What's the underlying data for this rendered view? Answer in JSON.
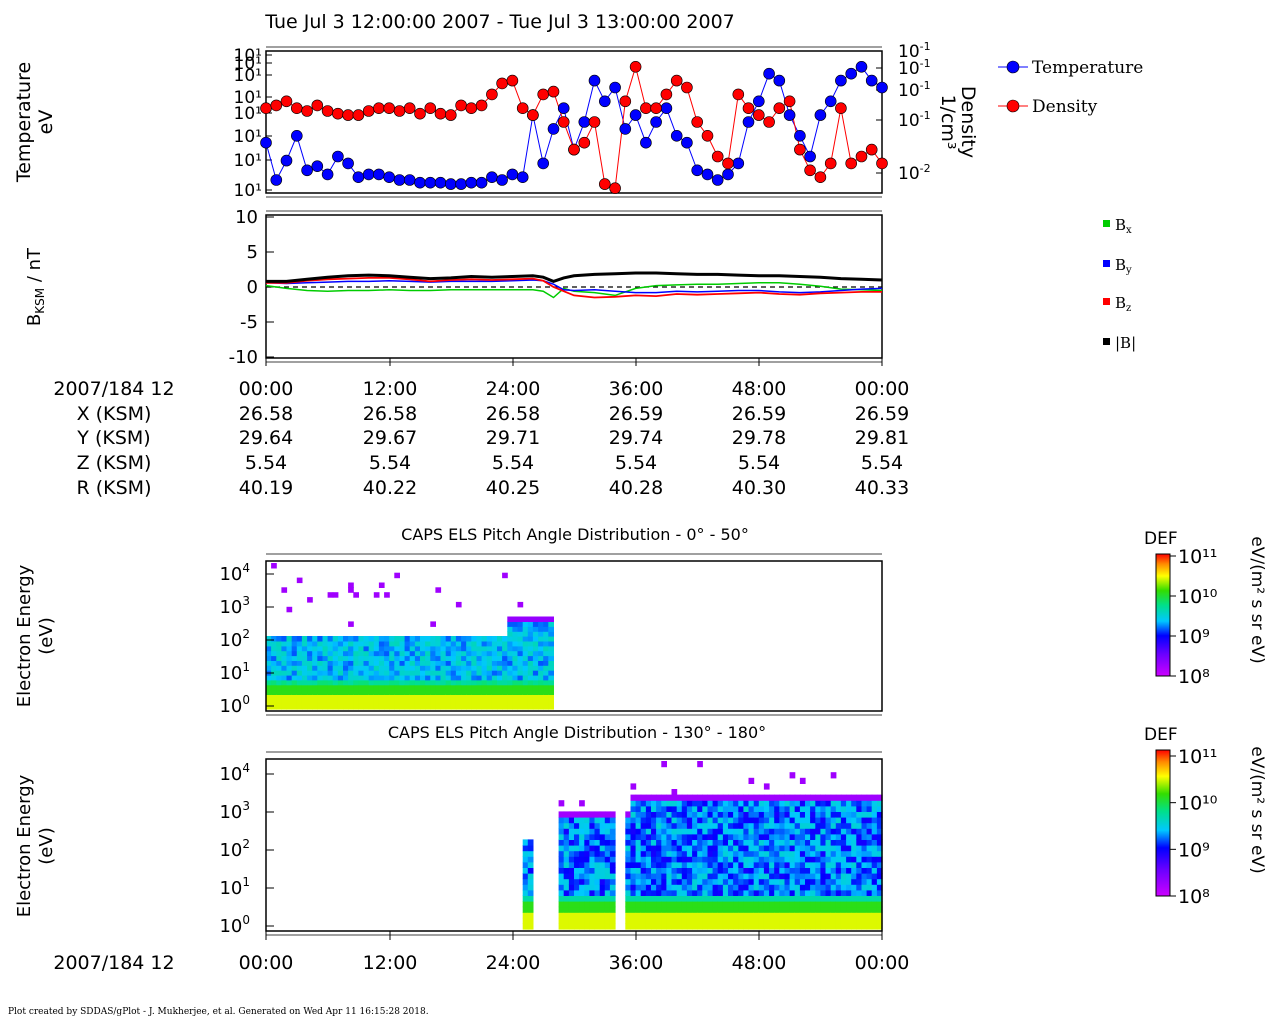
{
  "title": "Tue Jul 3 12:00:00 2007 - Tue Jul 3 13:00:00 2007",
  "footer": "Plot created by SDDAS/gPlot - J. Mukherjee, et al.  Generated on Wed Apr 11 16:15:28 2018.",
  "colors": {
    "temperature": "#0000ff",
    "density": "#ff0000",
    "bx": "#00cc00",
    "by": "#0000ff",
    "bz": "#ff0000",
    "bmag": "#000000"
  },
  "chart_data": [
    {
      "type": "scatter",
      "ylabel_left": "Temperature",
      "ylabel_left_unit": "eV",
      "ylabel_right": "Density",
      "ylabel_right_unit": "1/cm³",
      "left_ticks": [
        "10¹",
        "10¹",
        "10¹",
        "10¹",
        "10¹",
        "10¹",
        "10¹",
        "10¹"
      ],
      "right_ticks": [
        "10-1",
        "10-1",
        "10-1",
        "10-1",
        "10-2"
      ],
      "legend": [
        {
          "name": "Temperature"
        },
        {
          "name": "Density"
        }
      ],
      "x_minutes": [
        0,
        1,
        2,
        3,
        4,
        5,
        6,
        7,
        8,
        9,
        10,
        11,
        12,
        13,
        14,
        15,
        16,
        17,
        18,
        19,
        20,
        21,
        22,
        23,
        24,
        25,
        26,
        27,
        28,
        29,
        30,
        31,
        32,
        33,
        34,
        35,
        36,
        37,
        38,
        39,
        40,
        41,
        42,
        43,
        44,
        45,
        46,
        47,
        48,
        49,
        50,
        51,
        52,
        53,
        54,
        55,
        56,
        57,
        58,
        59,
        60
      ],
      "temperature_norm": [
        0.35,
        0.08,
        0.22,
        0.4,
        0.15,
        0.18,
        0.12,
        0.25,
        0.2,
        0.1,
        0.12,
        0.12,
        0.1,
        0.08,
        0.08,
        0.06,
        0.06,
        0.06,
        0.05,
        0.05,
        0.06,
        0.06,
        0.1,
        0.08,
        0.12,
        0.1,
        0.55,
        0.2,
        0.45,
        0.6,
        0.3,
        0.5,
        0.8,
        0.65,
        0.75,
        0.45,
        0.55,
        0.35,
        0.5,
        0.6,
        0.4,
        0.35,
        0.15,
        0.12,
        0.08,
        0.12,
        0.2,
        0.5,
        0.65,
        0.85,
        0.8,
        0.55,
        0.4,
        0.25,
        0.55,
        0.65,
        0.8,
        0.85,
        0.9,
        0.8,
        0.75
      ],
      "density_norm": [
        0.6,
        0.62,
        0.65,
        0.6,
        0.58,
        0.62,
        0.58,
        0.56,
        0.55,
        0.55,
        0.58,
        0.6,
        0.6,
        0.58,
        0.6,
        0.56,
        0.6,
        0.56,
        0.55,
        0.62,
        0.6,
        0.62,
        0.7,
        0.78,
        0.8,
        0.6,
        0.55,
        0.7,
        0.72,
        0.5,
        0.3,
        0.35,
        0.5,
        0.05,
        0.02,
        0.65,
        0.9,
        0.6,
        0.6,
        0.7,
        0.8,
        0.75,
        0.5,
        0.4,
        0.25,
        0.2,
        0.7,
        0.6,
        0.55,
        0.5,
        0.6,
        0.65,
        0.3,
        0.15,
        0.1,
        0.2,
        0.6,
        0.2,
        0.25,
        0.3,
        0.2
      ],
      "xlim": [
        0,
        60
      ]
    },
    {
      "type": "line",
      "ylabel": "B",
      "ylabel_sub": "KSM",
      "ylabel_unit": " / nT",
      "yticks": [
        "10",
        "5",
        "0",
        "-5",
        "-10"
      ],
      "ylim": [
        -10,
        10
      ],
      "legend": [
        {
          "name": "B",
          "sub": "x"
        },
        {
          "name": "B",
          "sub": "y"
        },
        {
          "name": "B",
          "sub": "z"
        },
        {
          "name": "|B|",
          "sub": ""
        }
      ],
      "x_minutes": [
        0,
        2,
        4,
        6,
        8,
        10,
        12,
        14,
        16,
        18,
        20,
        22,
        24,
        26,
        27,
        28,
        29,
        30,
        32,
        34,
        36,
        38,
        40,
        42,
        44,
        46,
        48,
        50,
        52,
        54,
        56,
        58,
        60
      ],
      "bx": [
        0.2,
        -0.2,
        -0.5,
        -0.6,
        -0.5,
        -0.5,
        -0.4,
        -0.5,
        -0.5,
        -0.4,
        -0.4,
        -0.4,
        -0.4,
        -0.4,
        -0.6,
        -1.5,
        -0.2,
        -0.6,
        -0.8,
        -1.2,
        -0.2,
        0.2,
        0.3,
        0.4,
        0.4,
        0.5,
        0.6,
        0.6,
        0.4,
        0.1,
        -0.3,
        -0.4,
        -0.5
      ],
      "by": [
        0.6,
        0.5,
        0.6,
        0.7,
        0.8,
        0.8,
        0.9,
        0.8,
        0.7,
        0.8,
        0.8,
        0.8,
        0.9,
        1.0,
        0.9,
        0.4,
        -0.4,
        -0.5,
        -0.4,
        -0.6,
        -0.8,
        -0.8,
        -0.6,
        -0.7,
        -0.6,
        -0.5,
        -0.5,
        -0.7,
        -0.8,
        -0.7,
        -0.5,
        -0.3,
        -0.2
      ],
      "bz": [
        0.6,
        0.6,
        0.9,
        1.1,
        1.2,
        1.3,
        1.3,
        1.1,
        0.8,
        1.0,
        1.1,
        1.0,
        1.1,
        1.2,
        0.9,
        0.0,
        -0.6,
        -1.2,
        -1.5,
        -1.4,
        -1.2,
        -1.3,
        -1.0,
        -1.1,
        -1.0,
        -0.9,
        -0.8,
        -1.0,
        -1.1,
        -0.9,
        -0.8,
        -0.7,
        -0.7
      ],
      "bmag": [
        0.8,
        0.8,
        1.1,
        1.4,
        1.6,
        1.7,
        1.6,
        1.4,
        1.2,
        1.3,
        1.5,
        1.4,
        1.5,
        1.6,
        1.4,
        0.8,
        1.3,
        1.6,
        1.8,
        1.9,
        2.0,
        2.0,
        1.9,
        1.8,
        1.8,
        1.7,
        1.6,
        1.6,
        1.5,
        1.4,
        1.2,
        1.1,
        1.0
      ]
    },
    {
      "type": "heatmap",
      "title": "CAPS ELS Pitch Angle Distribution - 0° - 50°",
      "ylabel": "Electron Energy",
      "ylabel_unit": "(eV)",
      "yticks": [
        "10",
        "10",
        "10",
        "10",
        "10"
      ],
      "ytick_exp": [
        "4",
        "3",
        "2",
        "1",
        "0"
      ],
      "colorbar": {
        "label": "DEF",
        "unit": "eV/(m² s sr eV)",
        "ticks": [
          "10¹¹",
          "10¹⁰",
          "10⁹",
          "10⁸"
        ]
      },
      "data_range_minutes": [
        0,
        28
      ]
    },
    {
      "type": "heatmap",
      "title": "CAPS ELS Pitch Angle Distribution - 130° - 180°",
      "ylabel": "Electron Energy",
      "ylabel_unit": "(eV)",
      "yticks": [
        "10",
        "10",
        "10",
        "10",
        "10"
      ],
      "ytick_exp": [
        "4",
        "3",
        "2",
        "1",
        "0"
      ],
      "colorbar": {
        "label": "DEF",
        "unit": "eV/(m² s sr eV)",
        "ticks": [
          "10¹¹",
          "10¹⁰",
          "10⁹",
          "10⁸"
        ]
      },
      "data_range_minutes": [
        25,
        60
      ]
    }
  ],
  "ephemeris": {
    "row_labels": [
      "2007/184 12",
      "X (KSM)",
      "Y (KSM)",
      "Z (KSM)",
      "R (KSM)"
    ],
    "times": [
      "00:00",
      "12:00",
      "24:00",
      "36:00",
      "48:00",
      "00:00"
    ],
    "X": [
      "26.58",
      "26.58",
      "26.58",
      "26.59",
      "26.59",
      "26.59"
    ],
    "Y": [
      "29.64",
      "29.67",
      "29.71",
      "29.74",
      "29.78",
      "29.81"
    ],
    "Z": [
      "5.54",
      "5.54",
      "5.54",
      "5.54",
      "5.54",
      "5.54"
    ],
    "R": [
      "40.19",
      "40.22",
      "40.25",
      "40.28",
      "40.30",
      "40.33"
    ]
  },
  "bottom_axis": {
    "label": "2007/184 12",
    "times": [
      "00:00",
      "12:00",
      "24:00",
      "36:00",
      "48:00",
      "00:00"
    ]
  }
}
